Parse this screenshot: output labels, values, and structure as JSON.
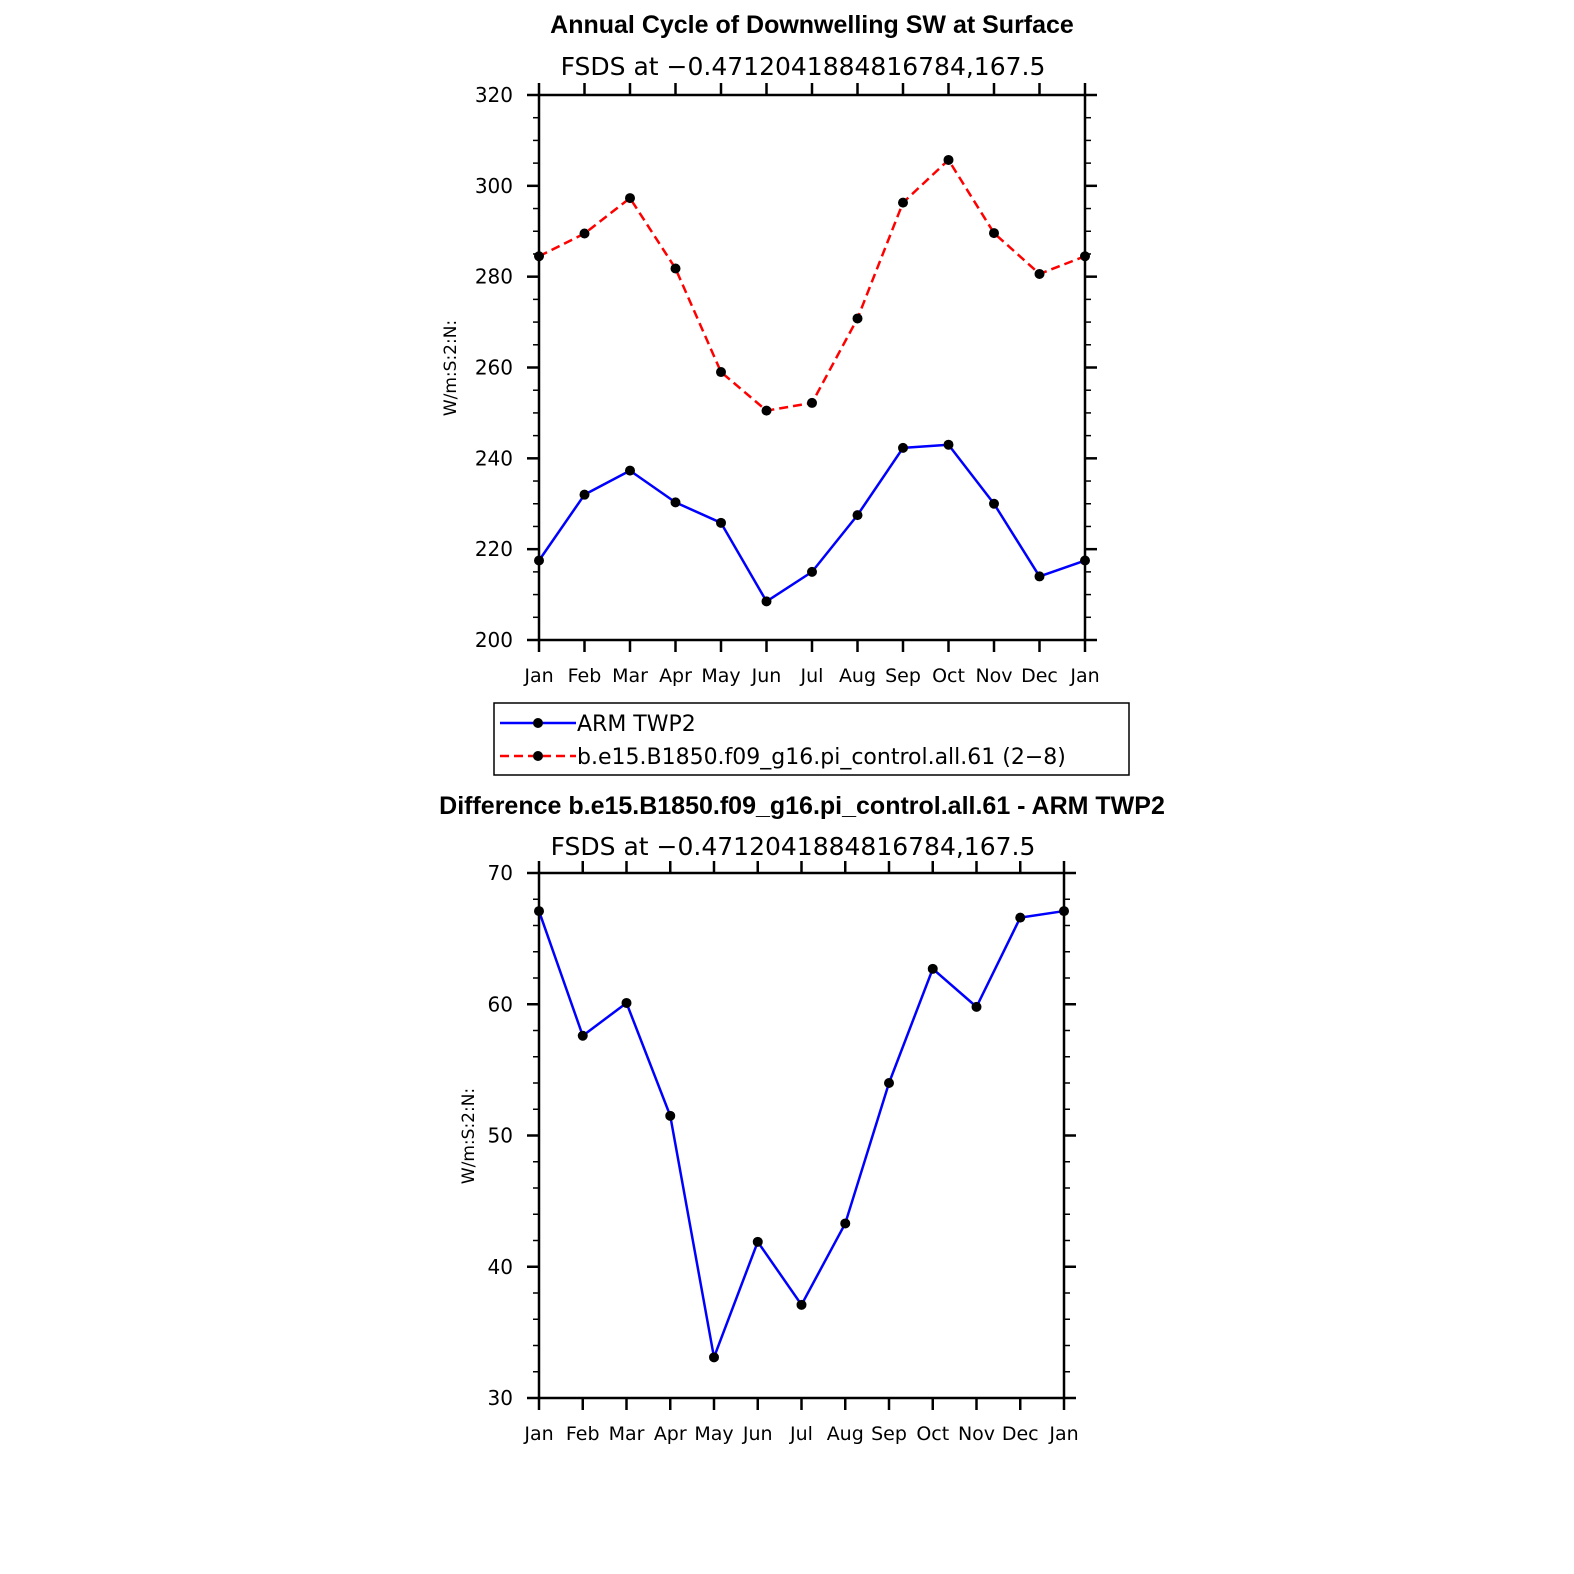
{
  "chart_data": [
    {
      "type": "line",
      "title": "Annual Cycle of Downwelling SW at Surface",
      "subtitle": "FSDS at −0.4712041884816784,167.5",
      "xlabel": "",
      "ylabel": "W/m:S:2:N:",
      "categories": [
        "Jan",
        "Feb",
        "Mar",
        "Apr",
        "May",
        "Jun",
        "Jul",
        "Aug",
        "Sep",
        "Oct",
        "Nov",
        "Dec",
        "Jan"
      ],
      "ylim": [
        200,
        320
      ],
      "yticks": [
        "200",
        "220",
        "240",
        "260",
        "280",
        "300",
        "320"
      ],
      "series": [
        {
          "name": "ARM TWP2",
          "color": "#0000ff",
          "dash": "solid",
          "values": [
            217.5,
            232,
            237.3,
            230.3,
            225.8,
            208.5,
            215,
            227.5,
            242.3,
            243,
            230,
            214,
            217.5
          ]
        },
        {
          "name": "b.e15.B1850.f09_g16.pi_control.all.61 (2−8)",
          "color": "#ff0000",
          "dash": "dashed",
          "values": [
            284.5,
            289.5,
            297.3,
            281.8,
            259,
            250.5,
            252.2,
            270.8,
            296.3,
            305.7,
            289.6,
            280.6,
            284.5
          ]
        }
      ],
      "legend": "below"
    },
    {
      "type": "line",
      "title": "Difference b.e15.B1850.f09_g16.pi_control.all.61 - ARM TWP2",
      "subtitle": "FSDS at −0.4712041884816784,167.5",
      "xlabel": "",
      "ylabel": "W/m:S:2:N:",
      "categories": [
        "Jan",
        "Feb",
        "Mar",
        "Apr",
        "May",
        "Jun",
        "Jul",
        "Aug",
        "Sep",
        "Oct",
        "Nov",
        "Dec",
        "Jan"
      ],
      "ylim": [
        30,
        70
      ],
      "yticks": [
        "30",
        "40",
        "50",
        "60",
        "70"
      ],
      "series": [
        {
          "color": "#0000ff",
          "dash": "solid",
          "values": [
            67.1,
            57.6,
            60.1,
            51.5,
            33.1,
            41.9,
            37.1,
            43.3,
            54,
            62.7,
            59.8,
            66.6,
            67.1
          ]
        }
      ]
    }
  ]
}
